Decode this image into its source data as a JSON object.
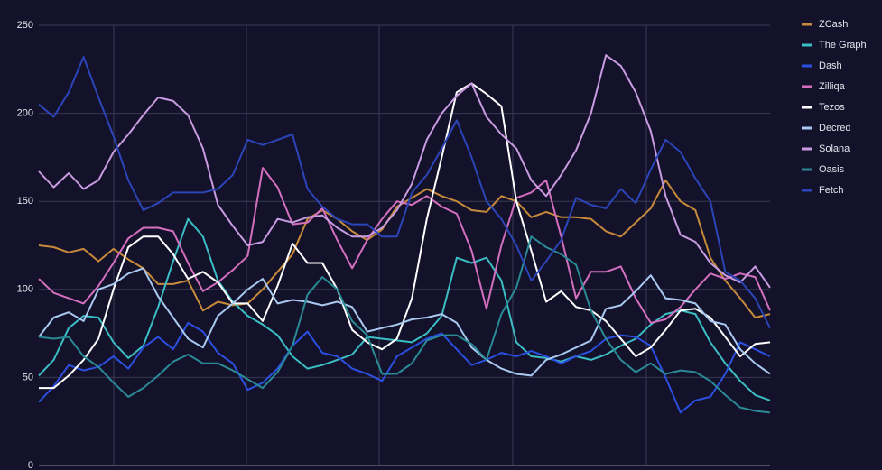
{
  "chart_data": {
    "type": "line",
    "ylim": [
      0,
      250
    ],
    "yticks": [
      0,
      50,
      100,
      150,
      200,
      250
    ],
    "grid": true,
    "legend": "right",
    "series": [
      {
        "name": "ZCash",
        "color": "#c78a3a",
        "values": [
          125,
          124,
          121,
          123,
          116,
          123,
          117,
          112,
          103,
          103,
          105,
          88,
          93,
          91,
          92,
          100,
          110,
          120,
          140,
          145,
          140,
          133,
          128,
          134,
          147,
          152,
          157,
          153,
          150,
          145,
          144,
          153,
          150,
          141,
          144,
          141,
          141,
          140,
          133,
          130,
          138,
          146,
          162,
          150,
          145,
          118,
          105,
          95,
          84,
          86
        ]
      },
      {
        "name": "The Graph",
        "color": "#3bbdc4",
        "values": [
          51,
          60,
          78,
          85,
          84,
          70,
          61,
          68,
          90,
          116,
          140,
          130,
          105,
          93,
          85,
          80,
          74,
          62,
          55,
          57,
          60,
          63,
          73,
          72,
          71,
          70,
          75,
          85,
          118,
          115,
          118,
          105,
          70,
          62,
          61,
          59,
          62,
          60,
          63,
          68,
          72,
          80,
          86,
          88,
          86,
          70,
          58,
          48,
          40,
          37
        ]
      },
      {
        "name": "Dash",
        "color": "#2b4fe0",
        "values": [
          36,
          45,
          57,
          54,
          56,
          62,
          55,
          67,
          73,
          66,
          81,
          76,
          64,
          58,
          43,
          47,
          55,
          68,
          76,
          64,
          62,
          55,
          52,
          48,
          62,
          67,
          72,
          75,
          66,
          57,
          60,
          64,
          62,
          65,
          62,
          58,
          62,
          65,
          72,
          74,
          73,
          68,
          50,
          30,
          37,
          39,
          52,
          70,
          66,
          62
        ]
      },
      {
        "name": "Zilliqa",
        "color": "#d46fc0",
        "values": [
          106,
          98,
          95,
          92,
          102,
          115,
          129,
          135,
          135,
          133,
          115,
          99,
          104,
          111,
          119,
          169,
          158,
          137,
          138,
          146,
          128,
          112,
          128,
          140,
          150,
          148,
          153,
          147,
          143,
          122,
          89,
          125,
          152,
          155,
          162,
          130,
          95,
          110,
          110,
          113,
          95,
          81,
          83,
          90,
          100,
          109,
          106,
          109,
          107,
          88
        ]
      },
      {
        "name": "Tezos",
        "color": "#ffffff",
        "values": [
          44,
          44,
          51,
          60,
          72,
          100,
          124,
          130,
          130,
          120,
          106,
          110,
          104,
          92,
          92,
          82,
          102,
          126,
          115,
          115,
          100,
          77,
          70,
          66,
          72,
          95,
          140,
          175,
          212,
          217,
          211,
          204,
          150,
          122,
          93,
          99,
          90,
          88,
          82,
          72,
          62,
          67,
          77,
          88,
          89,
          84,
          73,
          62,
          69,
          70
        ]
      },
      {
        "name": "Decred",
        "color": "#a8c8f0",
        "values": [
          73,
          84,
          87,
          82,
          100,
          103,
          109,
          112,
          96,
          84,
          72,
          67,
          85,
          92,
          100,
          106,
          92,
          94,
          93,
          91,
          93,
          90,
          76,
          78,
          80,
          83,
          84,
          86,
          81,
          67,
          60,
          55,
          52,
          51,
          60,
          63,
          67,
          71,
          89,
          91,
          99,
          108,
          95,
          94,
          92,
          82,
          80,
          66,
          58,
          52
        ]
      },
      {
        "name": "Solana",
        "color": "#c99be0",
        "values": [
          167,
          158,
          166,
          157,
          162,
          178,
          188,
          199,
          209,
          207,
          199,
          180,
          148,
          136,
          125,
          127,
          140,
          138,
          141,
          142,
          135,
          130,
          130,
          135,
          145,
          160,
          185,
          200,
          210,
          217,
          198,
          188,
          180,
          162,
          153,
          165,
          179,
          200,
          233,
          227,
          212,
          190,
          153,
          131,
          127,
          115,
          108,
          104,
          113,
          101
        ]
      },
      {
        "name": "Oasis",
        "color": "#2a8a95",
        "values": [
          73,
          72,
          73,
          62,
          56,
          47,
          39,
          44,
          51,
          59,
          63,
          58,
          58,
          54,
          49,
          44,
          53,
          68,
          97,
          107,
          100,
          82,
          74,
          52,
          52,
          58,
          71,
          74,
          74,
          69,
          60,
          86,
          101,
          130,
          124,
          120,
          114,
          88,
          72,
          60,
          53,
          58,
          52,
          54,
          53,
          48,
          40,
          33,
          31,
          30
        ]
      },
      {
        "name": "Fetch",
        "color": "#2b45b8",
        "values": [
          205,
          198,
          212,
          232,
          209,
          187,
          162,
          145,
          149,
          155,
          155,
          155,
          157,
          165,
          185,
          182,
          185,
          188,
          157,
          147,
          140,
          137,
          137,
          130,
          130,
          155,
          165,
          180,
          196,
          175,
          150,
          140,
          125,
          105,
          116,
          128,
          152,
          148,
          146,
          157,
          149,
          168,
          185,
          178,
          163,
          150,
          110,
          105,
          95,
          78
        ]
      }
    ]
  }
}
